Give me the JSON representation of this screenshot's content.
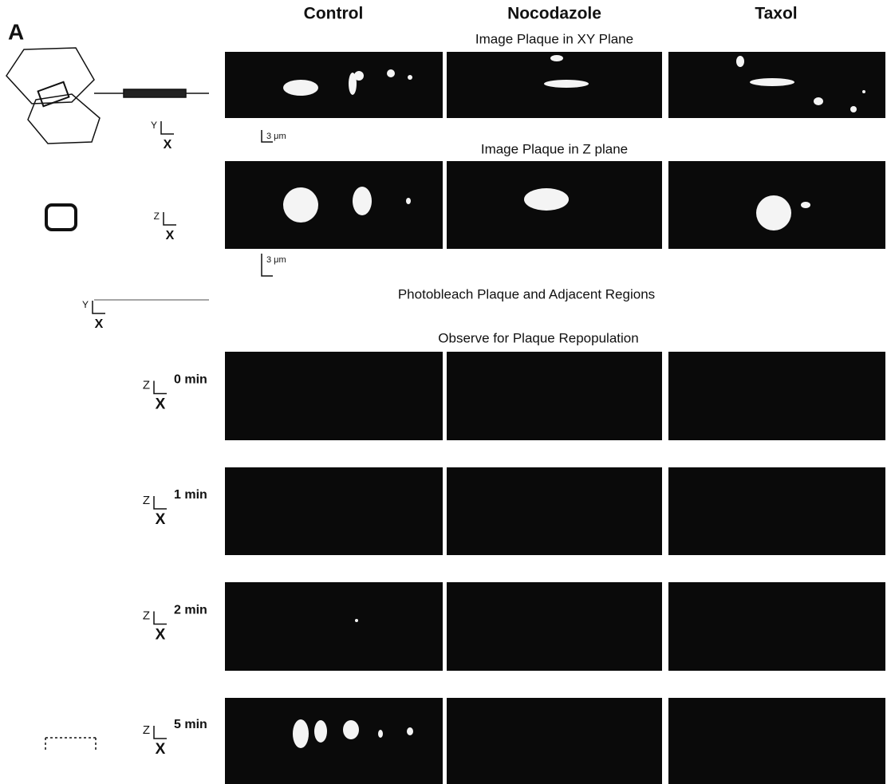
{
  "panel_label": "A",
  "columns": [
    "Control",
    "Nocodazole",
    "Taxol"
  ],
  "header_rows": [
    {
      "title": "Image Plaque in XY Plane",
      "axes": [
        "Y",
        "X"
      ],
      "scale_bar": "3 μm"
    },
    {
      "title": "Image Plaque in Z plane",
      "axes": [
        "Z",
        "X"
      ],
      "scale_bar": "3 μm"
    },
    {
      "title": "Photobleach Plaque and Adjacent Regions",
      "axes": [
        "Y",
        "X"
      ]
    }
  ],
  "observe_title": "Observe for Plaque Repopulation",
  "timepoints": [
    {
      "label": "0 min",
      "axes": [
        "Z",
        "X"
      ]
    },
    {
      "label": "1 min",
      "axes": [
        "Z",
        "X"
      ]
    },
    {
      "label": "2 min",
      "axes": [
        "Z",
        "X"
      ]
    },
    {
      "label": "5 min",
      "axes": [
        "Z",
        "X"
      ]
    }
  ]
}
